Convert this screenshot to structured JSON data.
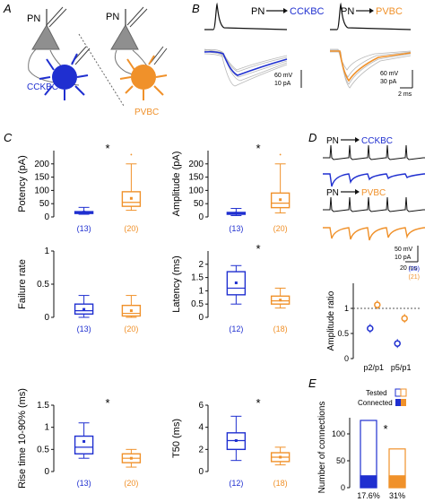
{
  "panel_labels": {
    "a": "A",
    "b": "B",
    "c": "C",
    "d": "D",
    "e": "E"
  },
  "colors": {
    "ccbkc": "#1f2fd0",
    "pvbc": "#f0912a",
    "gray": "#9a9a9a",
    "black": "#111111"
  },
  "panel_a": {
    "pn_left": "PN",
    "pn_right": "PN",
    "cell_left": "CCKBC",
    "cell_right": "PVBC"
  },
  "panel_b": {
    "left_title_pre": "PN",
    "left_title_post": "CCKBC",
    "right_title_pre": "PN",
    "right_title_post": "PVBC",
    "left_scale_1": "60 mV",
    "left_scale_2": "10 pA",
    "right_scale_1": "60 mV",
    "right_scale_2": "30 pA",
    "right_scale_3": "2 ms"
  },
  "panel_c": {
    "significance": "*",
    "chart_data": [
      {
        "type": "box",
        "ylabel": "Potency (pA)",
        "ylim": [
          0,
          250
        ],
        "yticks": [
          0,
          50,
          100,
          150,
          200
        ],
        "significant": true,
        "series": [
          {
            "name": "CCKBC",
            "n": "(13)",
            "whisker_low": 10,
            "q1": 13,
            "median": 17,
            "q3": 20,
            "whisker_high": 36,
            "mean": 18
          },
          {
            "name": "PVBC",
            "n": "(20)",
            "whisker_low": 25,
            "q1": 40,
            "median": 55,
            "q3": 95,
            "whisker_high": 200,
            "mean": 70,
            "outlier": 235
          }
        ]
      },
      {
        "type": "box",
        "ylabel": "Amplitude (pA)",
        "ylim": [
          0,
          250
        ],
        "yticks": [
          0,
          50,
          100,
          150,
          200
        ],
        "significant": true,
        "series": [
          {
            "name": "CCKBC",
            "n": "(13)",
            "whisker_low": 5,
            "q1": 10,
            "median": 13,
            "q3": 17,
            "whisker_high": 32,
            "mean": 14
          },
          {
            "name": "PVBC",
            "n": "(20)",
            "whisker_low": 15,
            "q1": 35,
            "median": 52,
            "q3": 90,
            "whisker_high": 200,
            "mean": 65,
            "outlier": 235
          }
        ]
      },
      {
        "type": "box",
        "ylabel": "Failure rate",
        "ylim": [
          0,
          1
        ],
        "yticks": [
          0,
          0.5,
          1
        ],
        "significant": false,
        "series": [
          {
            "name": "CCKBC",
            "n": "(13)",
            "whisker_low": 0,
            "q1": 0.05,
            "median": 0.1,
            "q3": 0.2,
            "whisker_high": 0.33,
            "mean": 0.12
          },
          {
            "name": "PVBC",
            "n": "(20)",
            "whisker_low": 0,
            "q1": 0.02,
            "median": 0.06,
            "q3": 0.18,
            "whisker_high": 0.33,
            "mean": 0.1
          }
        ]
      },
      {
        "type": "box",
        "ylabel": "Latency (ms)",
        "ylim": [
          0,
          2.5
        ],
        "yticks": [
          0,
          0.5,
          1,
          1.5,
          2
        ],
        "significant": true,
        "series": [
          {
            "name": "CCKBC",
            "n": "(12)",
            "whisker_low": 0.5,
            "q1": 0.85,
            "median": 1.1,
            "q3": 1.72,
            "whisker_high": 1.95,
            "mean": 1.3
          },
          {
            "name": "PVBC",
            "n": "(18)",
            "whisker_low": 0.35,
            "q1": 0.5,
            "median": 0.62,
            "q3": 0.8,
            "whisker_high": 1.1,
            "mean": 0.65
          }
        ]
      },
      {
        "type": "box",
        "ylabel": "Rise time 10-90% (ms)",
        "ylim": [
          0,
          1.5
        ],
        "yticks": [
          0,
          0.5,
          1,
          1.5
        ],
        "significant": true,
        "series": [
          {
            "name": "CCKBC",
            "n": "(13)",
            "whisker_low": 0.3,
            "q1": 0.4,
            "median": 0.55,
            "q3": 0.8,
            "whisker_high": 1.1,
            "mean": 0.68
          },
          {
            "name": "PVBC",
            "n": "(20)",
            "whisker_low": 0.1,
            "q1": 0.2,
            "median": 0.3,
            "q3": 0.4,
            "whisker_high": 0.5,
            "mean": 0.3
          }
        ]
      },
      {
        "type": "box",
        "ylabel": "T50 (ms)",
        "ylim": [
          0,
          6
        ],
        "yticks": [
          0,
          2,
          4,
          6
        ],
        "significant": true,
        "series": [
          {
            "name": "CCKBC",
            "n": "(12)",
            "whisker_low": 1,
            "q1": 2,
            "median": 2.8,
            "q3": 3.5,
            "whisker_high": 5,
            "mean": 2.8
          },
          {
            "name": "PVBC",
            "n": "(18)",
            "whisker_low": 0.6,
            "q1": 0.9,
            "median": 1.3,
            "q3": 1.7,
            "whisker_high": 2.2,
            "mean": 1.3
          }
        ]
      }
    ]
  },
  "panel_d": {
    "top_title_pre": "PN",
    "top_title_post": "CCKBC",
    "mid_title_pre": "PN",
    "mid_title_post": "PVBC",
    "scale_1": "50 mV",
    "scale_2": "10 pA",
    "scale_3": "20 ms",
    "chart_data": {
      "type": "scatter",
      "ylabel": "Amplitude ratio",
      "ylim": [
        0,
        1.5
      ],
      "yticks": [
        0,
        0.5,
        1
      ],
      "categories": [
        "p2/p1",
        "p5/p1"
      ],
      "series": [
        {
          "name": "CCKBC",
          "n": "(20)",
          "values": [
            0.6,
            0.3
          ]
        },
        {
          "name": "PVBC",
          "n": "(21)",
          "values": [
            1.07,
            0.8
          ]
        }
      ]
    }
  },
  "panel_e": {
    "legend_tested": "Tested",
    "legend_connected": "Connected",
    "significance": "*",
    "chart_data": {
      "type": "bar",
      "ylabel": "Number of connections",
      "ylim": [
        0,
        130
      ],
      "yticks": [
        0,
        50,
        100
      ],
      "categories": [
        "CCKBC",
        "PVBC"
      ],
      "series": [
        {
          "name": "Tested",
          "values": [
            125,
            72
          ]
        },
        {
          "name": "Connected",
          "values": [
            22,
            22
          ]
        }
      ],
      "bar_labels": [
        "17.6%",
        "31%"
      ]
    }
  }
}
